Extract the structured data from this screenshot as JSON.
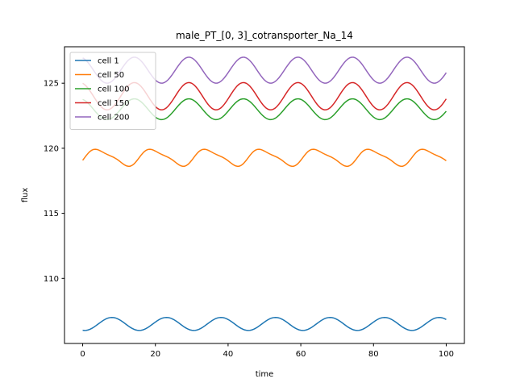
{
  "chart_data": {
    "type": "line",
    "title": "male_PT_[0, 3]_cotransporter_Na_14",
    "xlabel": "time",
    "ylabel": "flux",
    "xlim": [
      -5,
      105
    ],
    "ylim": [
      105,
      127.8
    ],
    "xticks": [
      0,
      20,
      40,
      60,
      80,
      100
    ],
    "yticks": [
      110,
      115,
      120,
      125
    ],
    "grid": false,
    "legend_position": "top-left",
    "series": [
      {
        "name": "cell 1",
        "color": "#1f77b4",
        "mean": 106.5,
        "amp": 0.5,
        "period": 15,
        "phase": -1.8,
        "harm2": 0.0
      },
      {
        "name": "cell 50",
        "color": "#ff7f0e",
        "mean": 119.3,
        "amp": 0.6,
        "period": 15,
        "phase": -0.3,
        "harm2": 0.15
      },
      {
        "name": "cell 100",
        "color": "#2ca02c",
        "mean": 123.0,
        "amp": 0.8,
        "period": 15,
        "phase": 1.9,
        "harm2": 0.0
      },
      {
        "name": "cell 150",
        "color": "#d62728",
        "mean": 124.0,
        "amp": 1.05,
        "period": 15,
        "phase": 1.9,
        "harm2": 0.0
      },
      {
        "name": "cell 200",
        "color": "#9467bd",
        "mean": 126.0,
        "amp": 1.0,
        "period": 15,
        "phase": 1.9,
        "harm2": 0.0
      }
    ]
  }
}
